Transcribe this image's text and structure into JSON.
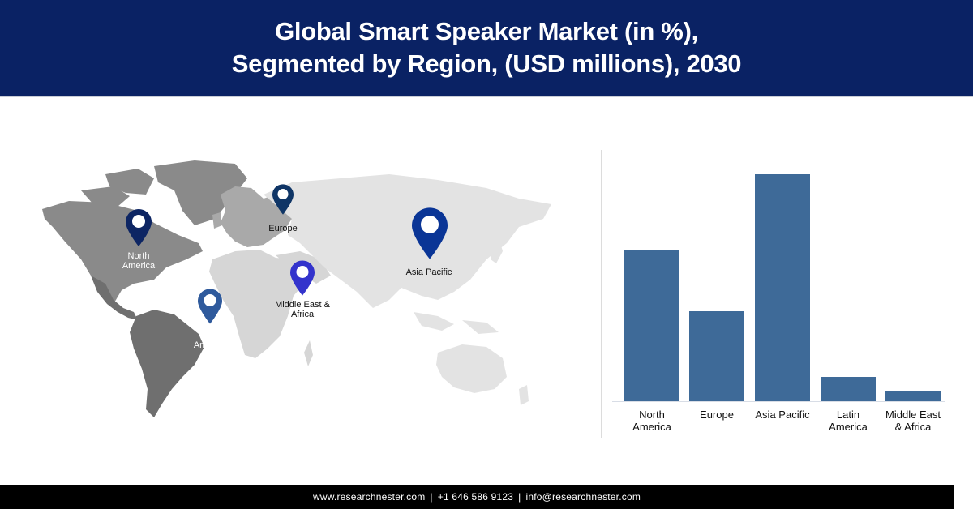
{
  "header": {
    "title_line1": "Global Smart Speaker Market (in %),",
    "title_line2": "Segmented by Region, (USD millions), 2030"
  },
  "map": {
    "pins": [
      {
        "label_line1": "North",
        "label_line2": "America",
        "color": "#0d2563",
        "icon": "map-pin-icon"
      },
      {
        "label_line1": "Europe",
        "label_line2": "",
        "color": "#0f3566",
        "icon": "map-pin-icon"
      },
      {
        "label_line1": "Asia Pacific",
        "label_line2": "",
        "color": "#0a3596",
        "icon": "map-pin-icon"
      },
      {
        "label_line1": "Middle East &",
        "label_line2": "Africa",
        "color": "#3333cc",
        "icon": "map-pin-icon"
      },
      {
        "label_line1": "Latin",
        "label_line2": "America",
        "color": "#2f5a9c",
        "icon": "map-pin-icon"
      }
    ],
    "colors": {
      "highlight_dark": "#6f6f6f",
      "highlight_mid": "#8a8a8a",
      "highlight_light": "#a9a9a9",
      "rest": "#e3e3e3"
    }
  },
  "chart_data": {
    "type": "bar",
    "title": "Global Smart Speaker Market (in %), Segmented by Region, (USD millions), 2030",
    "categories": [
      "North America",
      "Europe",
      "Asia Pacific",
      "Latin America",
      "Middle East & Africa"
    ],
    "category_labels": [
      [
        "North",
        "America"
      ],
      [
        "Europe",
        ""
      ],
      [
        "Asia Pacific",
        ""
      ],
      [
        "Latin",
        "America"
      ],
      [
        "Middle East",
        "& Africa"
      ]
    ],
    "values": [
      186,
      111,
      280,
      30,
      12
    ],
    "value_unit": "relative bar height (no y-axis shown)",
    "xlabel": "",
    "ylabel": "",
    "grid": false,
    "legend": "none",
    "bar_color": "#3e6a98"
  },
  "footer": {
    "website": "www.researchnester.com",
    "phone": "+1 646 586 9123",
    "email": "info@researchnester.com",
    "separator": "|"
  }
}
